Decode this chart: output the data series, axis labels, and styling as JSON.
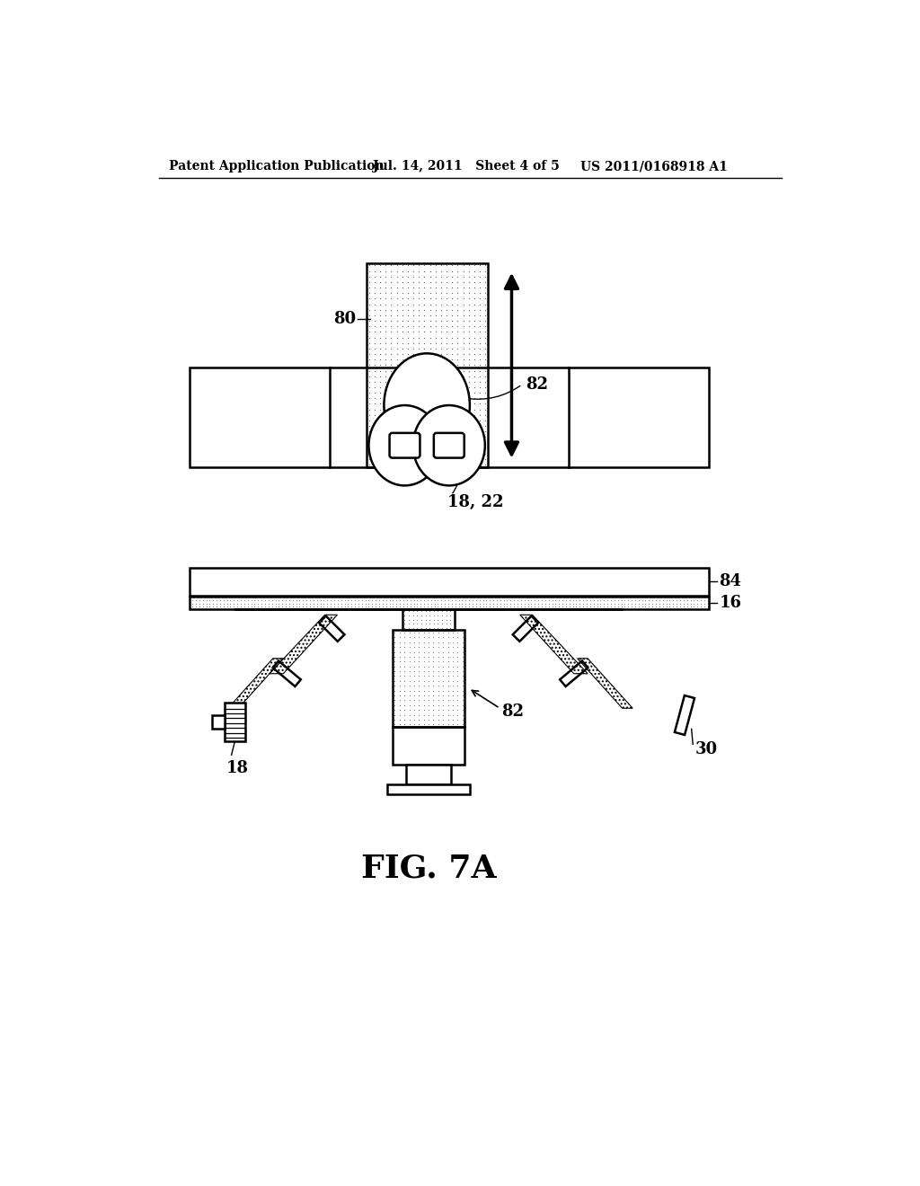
{
  "bg_color": "#ffffff",
  "line_color": "#000000",
  "header_left": "Patent Application Publication",
  "header_mid": "Jul. 14, 2011   Sheet 4 of 5",
  "header_right": "US 2011/0168918 A1",
  "fig_label": "FIG. 7A",
  "label_80": "80",
  "label_82_top": "82",
  "label_1822": "18, 22",
  "label_84": "84",
  "label_16": "16",
  "label_18": "18",
  "label_82_bot": "82",
  "label_30": "30"
}
